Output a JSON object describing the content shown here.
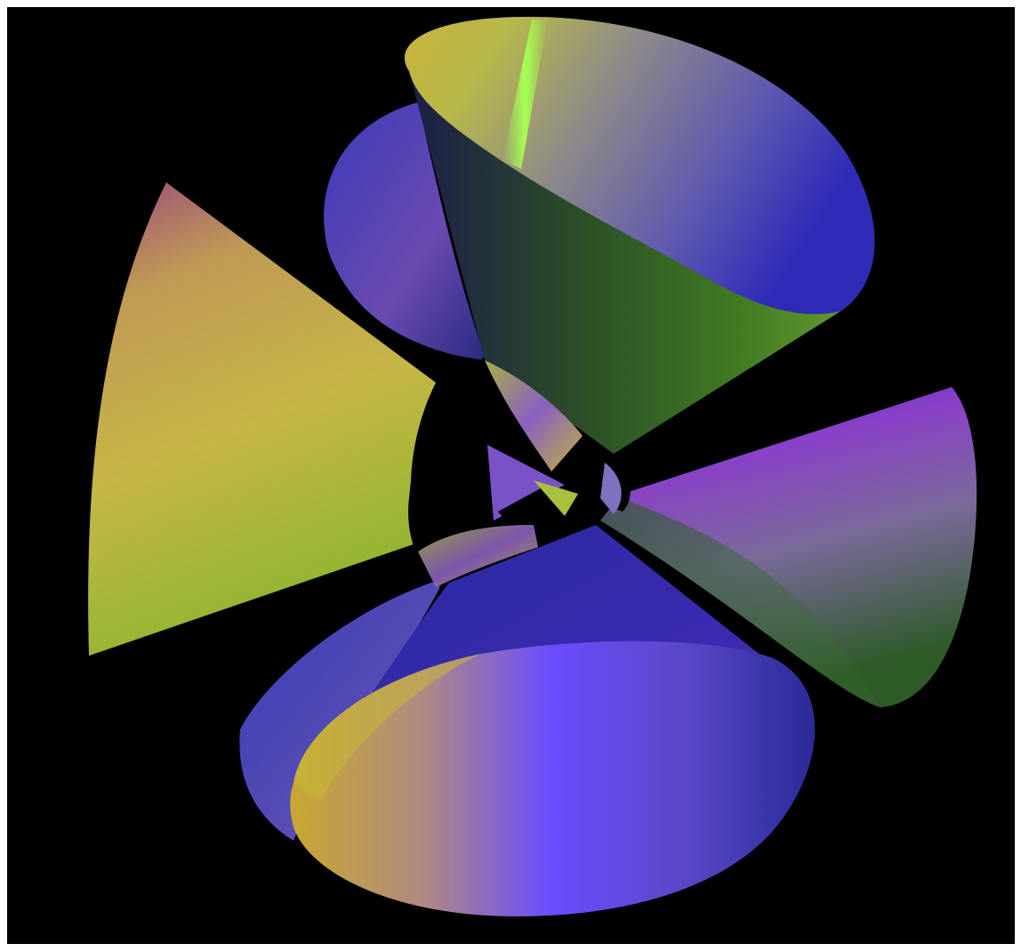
{
  "viewport": {
    "background": "#000000",
    "frame_color": "#ffffff",
    "subject": "algebraic-surface-with-conical-lobes"
  },
  "palette": {
    "yellow": "#c9c23a",
    "lime": "#9eff4a",
    "green": "#2d6b1e",
    "blue": "#2a2aa8",
    "violet": "#6a4cff",
    "purple": "#8a3fc0",
    "mauve": "#9a5a78",
    "slate": "#6a6a9a"
  }
}
